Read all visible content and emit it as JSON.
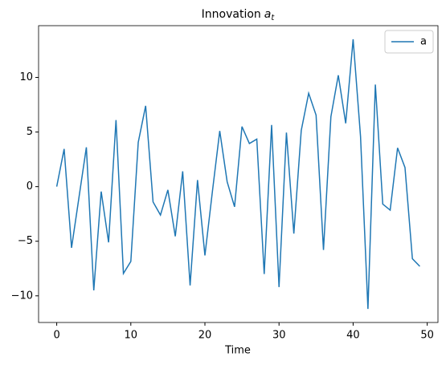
{
  "chart_data": {
    "type": "line",
    "title": [
      "Innovation",
      "a",
      "t"
    ],
    "xlabel": "Time",
    "x": [
      0,
      1,
      2,
      3,
      4,
      5,
      6,
      7,
      8,
      9,
      10,
      11,
      12,
      13,
      14,
      15,
      16,
      17,
      18,
      19,
      20,
      21,
      22,
      23,
      24,
      25,
      26,
      27,
      28,
      29,
      30,
      31,
      32,
      33,
      34,
      35,
      36,
      37,
      38,
      39,
      40,
      41,
      42,
      43,
      44,
      45,
      46,
      47,
      48,
      49
    ],
    "series": [
      {
        "name": "a",
        "color": "#1f77b4",
        "values": [
          0,
          3.45,
          -5.6,
          -1,
          3.6,
          -9.5,
          -0.45,
          -5.1,
          6.1,
          -7.95,
          -6.85,
          4.05,
          7.4,
          -1.4,
          -2.6,
          -0.3,
          -4.55,
          1.4,
          -9.05,
          0.6,
          -6.3,
          -0.5,
          5.1,
          0.45,
          -1.85,
          5.5,
          3.95,
          4.35,
          -8.0,
          5.65,
          -9.2,
          4.95,
          -4.3,
          5.15,
          8.55,
          6.55,
          -5.8,
          6.4,
          10.2,
          5.8,
          13.5,
          4.6,
          -11.2,
          9.35,
          -1.6,
          -2.15,
          3.55,
          1.75,
          -6.6,
          -7.3
        ]
      }
    ],
    "xlim": [
      -2.45,
      51.45
    ],
    "xticks": [
      0,
      10,
      20,
      30,
      40,
      50
    ],
    "ylim": [
      -12.44,
      14.74
    ],
    "yticks": [
      {
        "value": -10,
        "label": "−10"
      },
      {
        "value": -5,
        "label": "−5"
      },
      0,
      5,
      10
    ],
    "legend": "upper right",
    "grid": false
  }
}
